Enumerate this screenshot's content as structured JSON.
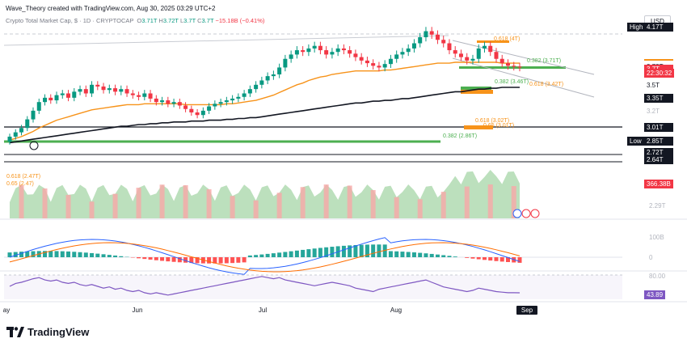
{
  "header": {
    "created_by": "Wave_Theory created with TradingView.com, Aug 30, 2025 03:29 UTC+2"
  },
  "symbol": {
    "name": "Crypto Total Market Cap, $ · 1D · CRYPTOCAP",
    "o": "3.71T",
    "h": "3.72T",
    "l": "3.7T",
    "c": "3.7T",
    "change": "−15.18B (−0.41%)"
  },
  "currency": "USD",
  "price_tags": [
    {
      "label": "High",
      "value": "4.17T",
      "y": 4.17,
      "bg": "#131722",
      "fg": "#ffffff"
    },
    {
      "label": "",
      "value": "3.75T",
      "y": 3.75,
      "bg": "#f7931a",
      "fg": "#131722"
    },
    {
      "label": "",
      "value": "3.73T",
      "y": 3.73,
      "bg": "#ffffff",
      "fg": "#131722"
    },
    {
      "label": "",
      "value": "3.73T",
      "y": 3.71,
      "bg": "#ffffff",
      "fg": "#131722"
    },
    {
      "label": "",
      "value": "3.7T",
      "y": 3.69,
      "bg": "#f23645",
      "fg": "#ffffff"
    },
    {
      "label": "",
      "value": "22:30:32",
      "y": 3.64,
      "bg": "#f23645",
      "fg": "#ffffff"
    },
    {
      "label": "",
      "value": "3.5T",
      "y": 3.5,
      "bg": "#ffffff",
      "fg": "#131722"
    },
    {
      "label": "",
      "value": "3.35T",
      "y": 3.35,
      "bg": "#131722",
      "fg": "#ffffff"
    },
    {
      "label": "",
      "value": "3.2T",
      "y": 3.2,
      "bg": "transparent",
      "fg": "#b2b5be"
    },
    {
      "label": "",
      "value": "3.01T",
      "y": 3.01,
      "bg": "#131722",
      "fg": "#ffffff"
    },
    {
      "label": "Low",
      "value": "2.85T",
      "y": 2.85,
      "bg": "#131722",
      "fg": "#ffffff"
    },
    {
      "label": "",
      "value": "2.72T",
      "y": 2.72,
      "bg": "#131722",
      "fg": "#ffffff"
    },
    {
      "label": "",
      "value": "2.64T",
      "y": 2.64,
      "bg": "#131722",
      "fg": "#ffffff"
    }
  ],
  "fib_labels": [
    {
      "text": "0.618 (4T)",
      "color": "#f7931a"
    },
    {
      "text": "0.382 (3.71T)",
      "color": "#4caf50"
    },
    {
      "text": "0.382 (3.46T)",
      "color": "#4caf50"
    },
    {
      "text": "0.618 (3.42T)",
      "color": "#f7931a"
    },
    {
      "text": "0.618 (3.02T)",
      "color": "#f7931a"
    },
    {
      "text": "0.65 (3.01T)",
      "color": "#f7931a"
    },
    {
      "text": "0.382 (2.86T)",
      "color": "#4caf50"
    }
  ],
  "volume_labels": [
    {
      "text": "0.618 (2.47T)",
      "color": "#f7931a"
    },
    {
      "text": "0.65 (2.47)",
      "color": "#f7931a"
    }
  ],
  "volume_tag": "366.38B",
  "volume_axis": "2.29T",
  "macd_axis": [
    "100B",
    "0"
  ],
  "rsi_axis": "80.00",
  "rsi_tag": "43.89",
  "x_axis": [
    "ay",
    "Jun",
    "Jul",
    "Aug",
    "Sep"
  ],
  "brand": "TradingView",
  "chart_data": {
    "type": "candlestick",
    "title": "Crypto Total Market Cap, $ · 1D · CRYPTOCAP",
    "ylim": [
      2.6,
      4.2
    ],
    "close": [
      2.9,
      2.95,
      3.0,
      3.1,
      3.2,
      3.3,
      3.35,
      3.32,
      3.38,
      3.4,
      3.35,
      3.42,
      3.45,
      3.4,
      3.5,
      3.48,
      3.44,
      3.46,
      3.42,
      3.45,
      3.4,
      3.38,
      3.36,
      3.4,
      3.34,
      3.3,
      3.32,
      3.28,
      3.3,
      3.26,
      3.22,
      3.18,
      3.15,
      3.2,
      3.25,
      3.28,
      3.3,
      3.32,
      3.34,
      3.36,
      3.4,
      3.45,
      3.5,
      3.55,
      3.6,
      3.62,
      3.7,
      3.8,
      3.85,
      3.9,
      3.88,
      3.92,
      3.95,
      3.9,
      3.85,
      3.88,
      3.92,
      3.9,
      3.86,
      3.82,
      3.78,
      3.75,
      3.72,
      3.7,
      3.74,
      3.8,
      3.85,
      3.88,
      3.92,
      3.98,
      4.05,
      4.12,
      4.08,
      4.02,
      3.98,
      3.9,
      3.86,
      3.82,
      3.78,
      3.8,
      3.92,
      3.95,
      3.88,
      3.8,
      3.75,
      3.72,
      3.71,
      3.7
    ],
    "ema50": [
      2.86,
      2.88,
      2.9,
      2.93,
      2.96,
      3.0,
      3.03,
      3.06,
      3.09,
      3.11,
      3.13,
      3.15,
      3.17,
      3.19,
      3.21,
      3.22,
      3.23,
      3.24,
      3.25,
      3.26,
      3.27,
      3.27,
      3.27,
      3.28,
      3.28,
      3.28,
      3.28,
      3.28,
      3.28,
      3.28,
      3.27,
      3.27,
      3.27,
      3.27,
      3.27,
      3.27,
      3.27,
      3.28,
      3.28,
      3.29,
      3.3,
      3.31,
      3.32,
      3.34,
      3.36,
      3.38,
      3.41,
      3.44,
      3.47,
      3.5,
      3.52,
      3.55,
      3.57,
      3.59,
      3.6,
      3.62,
      3.63,
      3.64,
      3.65,
      3.66,
      3.66,
      3.66,
      3.66,
      3.66,
      3.67,
      3.67,
      3.68,
      3.69,
      3.7,
      3.71,
      3.72,
      3.73,
      3.74,
      3.75,
      3.75,
      3.75,
      3.76,
      3.76,
      3.76,
      3.76,
      3.76,
      3.76,
      3.76,
      3.76,
      3.75,
      3.75,
      3.75,
      3.75
    ],
    "ema200": [
      2.83,
      2.84,
      2.85,
      2.86,
      2.87,
      2.88,
      2.89,
      2.9,
      2.91,
      2.92,
      2.93,
      2.94,
      2.95,
      2.96,
      2.97,
      2.98,
      2.99,
      3.0,
      3.01,
      3.02,
      3.02,
      3.03,
      3.04,
      3.04,
      3.05,
      3.05,
      3.06,
      3.06,
      3.07,
      3.07,
      3.07,
      3.08,
      3.08,
      3.08,
      3.09,
      3.09,
      3.09,
      3.1,
      3.1,
      3.11,
      3.11,
      3.12,
      3.12,
      3.13,
      3.14,
      3.15,
      3.16,
      3.17,
      3.18,
      3.19,
      3.2,
      3.21,
      3.22,
      3.23,
      3.24,
      3.25,
      3.26,
      3.27,
      3.28,
      3.29,
      3.29,
      3.3,
      3.31,
      3.31,
      3.32,
      3.32,
      3.33,
      3.34,
      3.34,
      3.35,
      3.36,
      3.37,
      3.38,
      3.39,
      3.4,
      3.41,
      3.42,
      3.42,
      3.43,
      3.44,
      3.45,
      3.45,
      3.46,
      3.46,
      3.47,
      3.47,
      3.47,
      3.47
    ],
    "rsi": [
      55,
      60,
      62,
      65,
      68,
      70,
      66,
      64,
      66,
      62,
      60,
      62,
      58,
      56,
      58,
      55,
      52,
      54,
      50,
      52,
      48,
      46,
      48,
      44,
      42,
      44,
      42,
      40,
      42,
      44,
      46,
      48,
      50,
      52,
      54,
      56,
      58,
      60,
      62,
      64,
      66,
      68,
      70,
      72,
      70,
      68,
      70,
      66,
      64,
      62,
      60,
      58,
      56,
      58,
      60,
      62,
      60,
      58,
      56,
      52,
      50,
      48,
      46,
      50,
      52,
      54,
      56,
      58,
      60,
      62,
      64,
      66,
      62,
      58,
      54,
      52,
      50,
      48,
      46,
      48,
      52,
      50,
      48,
      46,
      45,
      44,
      44,
      43.89
    ]
  }
}
